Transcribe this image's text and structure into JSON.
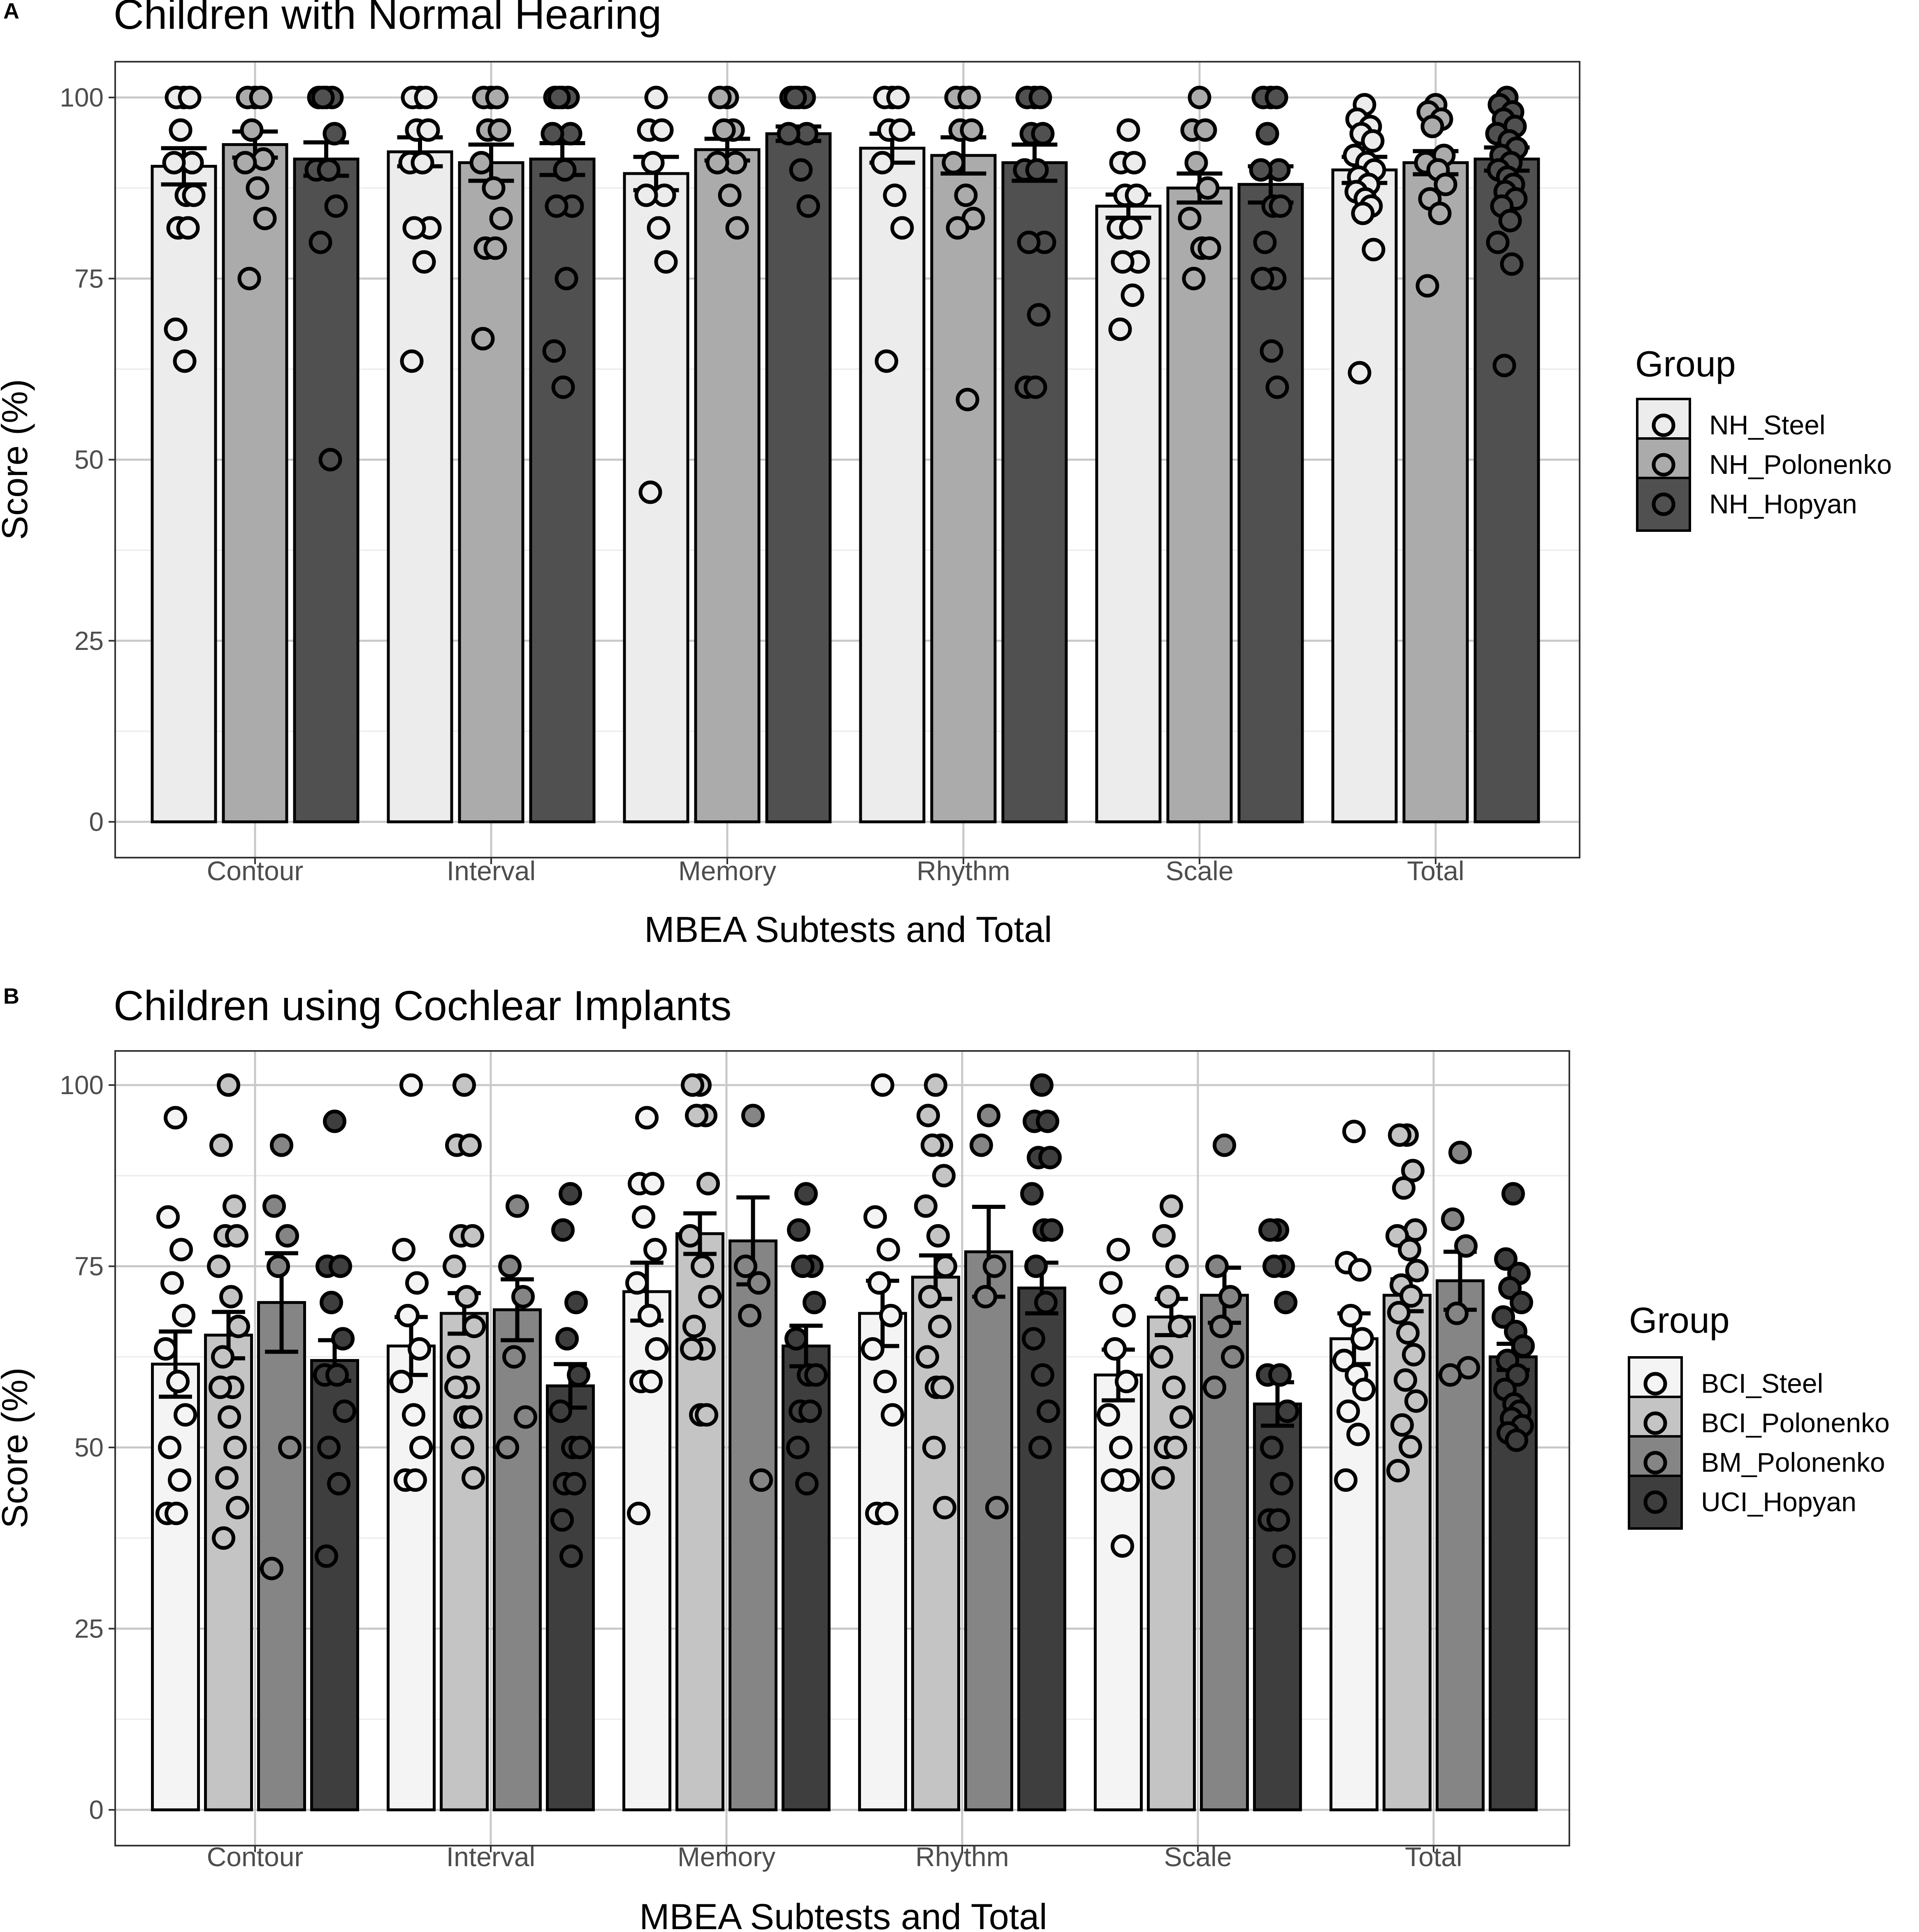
{
  "chart_data": [
    {
      "type": "bar",
      "panel_label": "A",
      "title": "Children with Normal Hearing",
      "xlabel": "MBEA Subtests and Total",
      "ylabel": "Score (%)",
      "ylim": [
        0,
        105
      ],
      "yticks": [
        0,
        25,
        50,
        75,
        100
      ],
      "grid": true,
      "legend_title": "Group",
      "legend_position": "right",
      "categories": [
        "Contour",
        "Interval",
        "Memory",
        "Rhythm",
        "Scale",
        "Total"
      ],
      "series": [
        {
          "name": "NH_Steel",
          "color": "#ececec",
          "values": [
            90.5,
            92.5,
            89.5,
            93.0,
            85.0,
            90.0
          ],
          "se": [
            2.5,
            2.0,
            2.3,
            2.0,
            1.6,
            1.8
          ],
          "points": [
            [
              100,
              100,
              100,
              95.5,
              91,
              91,
              86.5,
              86.5,
              82,
              82,
              68,
              63.6
            ],
            [
              100,
              100,
              100,
              95.5,
              95.5,
              91,
              91,
              82,
              82,
              77.3,
              63.6
            ],
            [
              100,
              95.5,
              95.5,
              91,
              86.5,
              86.5,
              82,
              77.3,
              45.5
            ],
            [
              100,
              100,
              100,
              95.5,
              95.5,
              91,
              86.5,
              82,
              63.6
            ],
            [
              95.5,
              91,
              91,
              86.5,
              86.5,
              82,
              82,
              77.3,
              77.3,
              72.7,
              68
            ],
            [
              99,
              97,
              96,
              95,
              94,
              92,
              91,
              90,
              89,
              88,
              87,
              86,
              85,
              84,
              79,
              62
            ]
          ]
        },
        {
          "name": "NH_Polonenko",
          "color": "#ababab",
          "values": [
            93.5,
            91.0,
            92.8,
            92.0,
            87.5,
            91.0
          ],
          "se": [
            1.8,
            2.5,
            1.5,
            2.5,
            2.0,
            1.6
          ],
          "points": [
            [
              100,
              100,
              100,
              95.5,
              91.5,
              91,
              87.5,
              83.3,
              75
            ],
            [
              100,
              100,
              100,
              95.5,
              95.5,
              91,
              87.5,
              83.3,
              79.2,
              79.2,
              66.7
            ],
            [
              100,
              100,
              95.5,
              95.5,
              91,
              91,
              86.5,
              82
            ],
            [
              100,
              100,
              100,
              95.5,
              95.5,
              91,
              86.5,
              83.3,
              82,
              58.3
            ],
            [
              100,
              95.5,
              95.5,
              91,
              87.5,
              83.3,
              79.2,
              79.2,
              75
            ],
            [
              99,
              98,
              97,
              96,
              92,
              91,
              90,
              88,
              86,
              84,
              74
            ]
          ]
        },
        {
          "name": "NH_Hopyan",
          "color": "#505050",
          "values": [
            91.5,
            91.5,
            95.0,
            91.0,
            88.0,
            91.5
          ],
          "se": [
            2.3,
            2.2,
            1.0,
            2.5,
            2.5,
            1.6
          ],
          "points": [
            [
              100,
              100,
              100,
              100,
              95,
              90,
              90,
              85,
              80,
              50
            ],
            [
              100,
              100,
              100,
              100,
              95,
              95,
              90,
              85,
              85,
              75,
              65,
              60
            ],
            [
              100,
              100,
              100,
              100,
              95,
              95,
              90,
              85
            ],
            [
              100,
              100,
              100,
              95,
              95,
              90,
              90,
              80,
              80,
              70,
              60,
              60
            ],
            [
              100,
              100,
              100,
              95,
              90,
              90,
              85,
              85,
              80,
              75,
              75,
              65,
              60
            ],
            [
              100,
              99,
              98,
              97,
              96,
              95,
              94,
              93,
              92,
              91,
              90,
              89,
              88,
              87,
              86,
              85,
              83,
              80,
              77,
              63
            ]
          ]
        }
      ]
    },
    {
      "type": "bar",
      "panel_label": "B",
      "title": "Children using Cochlear Implants",
      "xlabel": "MBEA Subtests and Total",
      "ylabel": "Score (%)",
      "ylim": [
        0,
        105
      ],
      "yticks": [
        0,
        25,
        50,
        75,
        100
      ],
      "grid": true,
      "legend_title": "Group",
      "legend_position": "right",
      "categories": [
        "Contour",
        "Interval",
        "Memory",
        "Rhythm",
        "Scale",
        "Total"
      ],
      "series": [
        {
          "name": "BCI_Steel",
          "color": "#f4f4f4",
          "values": [
            61.5,
            64.0,
            71.5,
            68.5,
            60.0,
            65.0
          ],
          "se": [
            4.5,
            4.0,
            4.0,
            4.5,
            3.5,
            3.5
          ],
          "points": [
            [
              95.5,
              81.8,
              77.3,
              72.7,
              68.2,
              63.6,
              59.1,
              54.5,
              50,
              45.5,
              40.9,
              40.9
            ],
            [
              100,
              77.3,
              72.7,
              68.2,
              63.6,
              59.1,
              54.5,
              50,
              45.5,
              45.5
            ],
            [
              95.5,
              86.4,
              86.4,
              81.8,
              77.3,
              72.7,
              68.2,
              63.6,
              59.1,
              59.1,
              40.9
            ],
            [
              100,
              81.8,
              77.3,
              72.7,
              68.2,
              63.6,
              59.1,
              54.5,
              40.9,
              40.9
            ],
            [
              77.3,
              72.7,
              68.2,
              63.6,
              59.1,
              54.5,
              50,
              45.5,
              45.5,
              36.4
            ],
            [
              93.6,
              75.5,
              74.5,
              68.2,
              65,
              62,
              60,
              58,
              55,
              51.8,
              45.5
            ]
          ]
        },
        {
          "name": "BCI_Polonenko",
          "color": "#c4c4c4",
          "values": [
            65.5,
            68.5,
            79.5,
            73.5,
            68.0,
            71.0
          ],
          "se": [
            3.2,
            2.8,
            2.8,
            3.0,
            2.5,
            2.2
          ],
          "points": [
            [
              100,
              91.7,
              83.3,
              79.2,
              79.2,
              75,
              70.8,
              66.7,
              62.5,
              58.3,
              58.3,
              54.2,
              50,
              45.8,
              41.7,
              37.5
            ],
            [
              100,
              91.7,
              91.7,
              79.2,
              79.2,
              75,
              70.8,
              66.7,
              62.5,
              58.3,
              58.3,
              54.2,
              54.2,
              50,
              45.8
            ],
            [
              100,
              100,
              95.8,
              95.8,
              86.4,
              79.2,
              75,
              70.8,
              66.7,
              63.6,
              63.6,
              54.5,
              54.5
            ],
            [
              100,
              95.8,
              91.7,
              91.7,
              87.5,
              83.3,
              79.2,
              75,
              70.8,
              66.7,
              62.5,
              58.3,
              58.3,
              50,
              41.7
            ],
            [
              83.3,
              79.2,
              75,
              70.8,
              66.7,
              62.5,
              58.3,
              54.2,
              50,
              50,
              45.8
            ],
            [
              93.1,
              93.1,
              88.2,
              85.8,
              80,
              79.2,
              77.3,
              74.4,
              72.4,
              70.9,
              68.6,
              65.8,
              62.8,
              59.3,
              56.4,
              53.1,
              50.1,
              46.8
            ]
          ]
        },
        {
          "name": "BM_Polonenko",
          "color": "#858585",
          "values": [
            70.0,
            69.0,
            78.5,
            77.0,
            71.0,
            73.0
          ],
          "se": [
            6.8,
            4.2,
            6.0,
            6.2,
            3.8,
            4.0
          ],
          "points": [
            [
              91.7,
              83.3,
              79.2,
              75,
              50,
              33.3
            ],
            [
              83.3,
              75,
              70.8,
              62.5,
              54.2,
              50
            ],
            [
              95.8,
              75,
              72.7,
              68.2,
              45.5
            ],
            [
              95.8,
              91.7,
              75,
              70.8,
              41.7
            ],
            [
              91.7,
              75,
              70.8,
              66.7,
              62.5,
              58.3
            ],
            [
              90.7,
              81.5,
              77.8,
              68.5,
              61,
              60
            ]
          ]
        },
        {
          "name": "UCI_Hopyan",
          "color": "#3e3e3e",
          "values": [
            62.0,
            58.5,
            64.0,
            72.0,
            56.0,
            62.5
          ],
          "se": [
            2.8,
            3.0,
            2.8,
            3.5,
            3.0,
            1.8
          ],
          "points": [
            [
              95,
              75,
              75,
              70,
              65,
              60,
              60,
              55,
              50,
              45,
              35
            ],
            [
              85,
              80,
              70,
              65,
              60,
              55,
              50,
              50,
              45,
              45,
              40,
              35
            ],
            [
              85,
              80,
              75,
              75,
              70,
              65,
              60,
              60,
              55,
              55,
              50,
              45
            ],
            [
              100,
              95,
              95,
              90,
              90,
              85,
              80,
              80,
              75,
              70,
              65,
              60,
              55,
              50
            ],
            [
              80,
              80,
              75,
              75,
              70,
              60,
              60,
              55,
              50,
              45,
              40,
              40,
              35
            ],
            [
              85,
              76,
              74,
              72,
              70,
              68,
              66,
              64,
              62,
              60,
              58,
              56,
              55,
              54,
              53,
              52,
              51
            ]
          ]
        }
      ]
    }
  ]
}
